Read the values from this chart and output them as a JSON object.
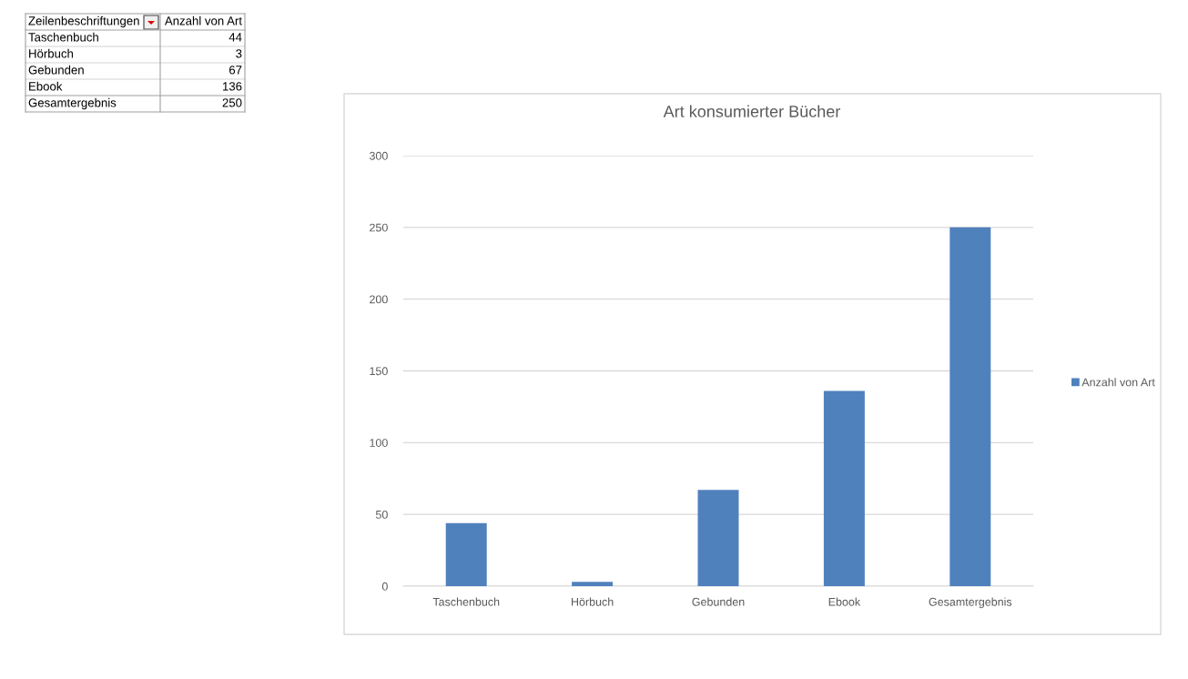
{
  "chart_data": [
    {
      "type": "other",
      "annotations": [
        "Zeilenbeschriftungen",
        "Anzahl von Art",
        "Taschenbuch",
        "44",
        "Hörbuch",
        "3",
        "Gebunden",
        "67",
        "Ebook",
        "136",
        "Gesamtergebnis",
        "250"
      ]
    },
    {
      "type": "bar",
      "title": "Art konsumierter Bücher",
      "categories": [
        "Taschenbuch",
        "Hörbuch",
        "Gebunden",
        "Ebook",
        "Gesamtergebnis"
      ],
      "series": [
        {
          "name": "Anzahl von Art",
          "color": "#4f81bd",
          "values": [
            44,
            3,
            67,
            136,
            250
          ]
        }
      ],
      "ylim": [
        0,
        300
      ],
      "yticks": [
        0,
        50,
        100,
        150,
        200,
        250,
        300
      ],
      "grid": "y",
      "legend": "right"
    }
  ]
}
